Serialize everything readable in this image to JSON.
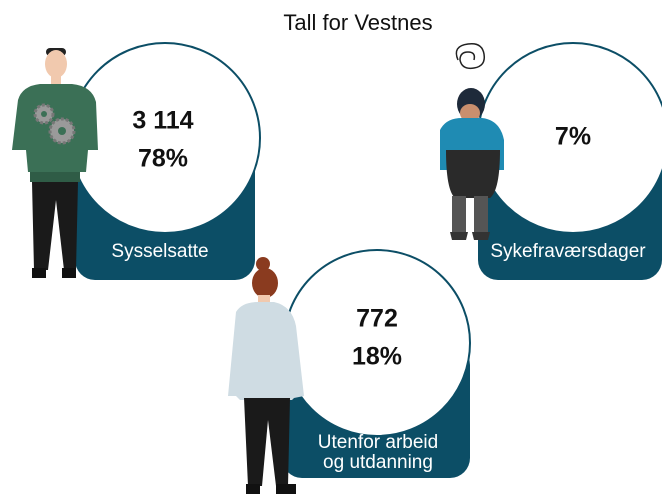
{
  "title": "Tall for Vestnes",
  "cards": [
    {
      "values": [
        "3 114",
        "78%"
      ],
      "label": [
        "Sysselsatte"
      ]
    },
    {
      "values": [
        "7%"
      ],
      "label": [
        "Sykefraværsdager"
      ]
    },
    {
      "values": [
        "772",
        "18%"
      ],
      "label": [
        "Utenfor arbeid",
        "og utdanning"
      ]
    }
  ]
}
